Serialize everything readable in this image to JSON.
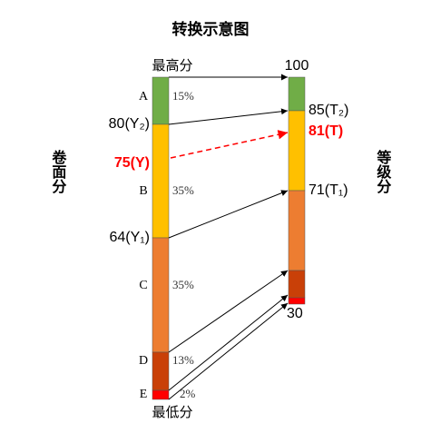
{
  "title": "转换示意图",
  "left_axis_label": "卷面分",
  "right_axis_label": "等级分",
  "left_bar": {
    "top_label": "最高分",
    "bottom_label": "最低分",
    "segments": [
      {
        "grade": "A",
        "percent": "15%"
      },
      {
        "grade": "B",
        "percent": "35%"
      },
      {
        "grade": "C",
        "percent": "35%"
      },
      {
        "grade": "D",
        "percent": "13%"
      },
      {
        "grade": "E",
        "percent": "2%"
      }
    ],
    "scores": [
      "80(Y₂)",
      "75(Y)",
      "64(Y₁)"
    ]
  },
  "right_bar": {
    "scores": [
      "100",
      "85(T₂)",
      "81(T)",
      "71(T₁)",
      "30"
    ]
  }
}
